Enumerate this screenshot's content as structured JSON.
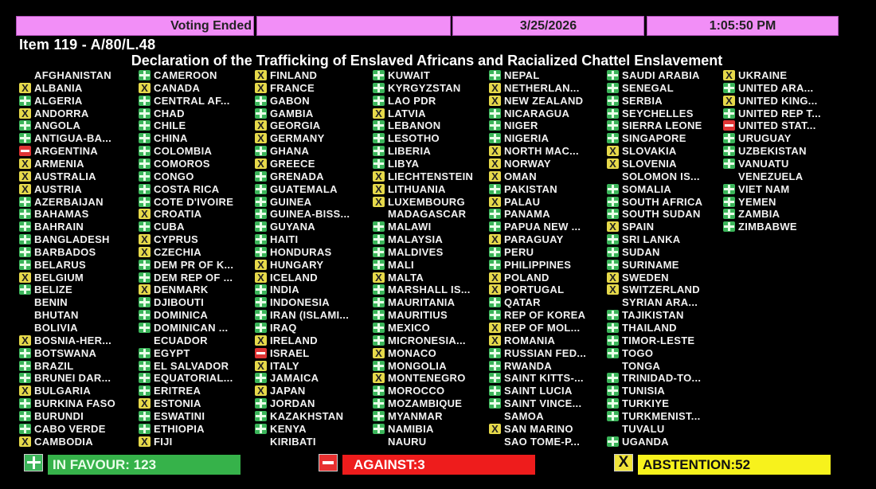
{
  "header": {
    "status": "Voting Ended",
    "blank": "",
    "date": "3/25/2026",
    "time": "1:05:50 PM"
  },
  "item": "Item 119 - A/80/L.48",
  "title": "Declaration of the Trafficking of Enslaved Africans and Racialized Chattel Enslavement",
  "colors": {
    "header": "#f28ef7",
    "yes": "#3bb55a",
    "no": "#e03535",
    "abstain": "#e6d94a"
  },
  "columns": [
    [
      [
        "AFGHANISTAN",
        ""
      ],
      [
        "ALBANIA",
        "abstain"
      ],
      [
        "ALGERIA",
        "yes"
      ],
      [
        "ANDORRA",
        "abstain"
      ],
      [
        "ANGOLA",
        "yes"
      ],
      [
        "ANTIGUA-BA...",
        "yes"
      ],
      [
        "ARGENTINA",
        "no"
      ],
      [
        "ARMENIA",
        "abstain"
      ],
      [
        "AUSTRALIA",
        "abstain"
      ],
      [
        "AUSTRIA",
        "abstain"
      ],
      [
        "AZERBAIJAN",
        "yes"
      ],
      [
        "BAHAMAS",
        "yes"
      ],
      [
        "BAHRAIN",
        "yes"
      ],
      [
        "BANGLADESH",
        "yes"
      ],
      [
        "BARBADOS",
        "yes"
      ],
      [
        "BELARUS",
        "yes"
      ],
      [
        "BELGIUM",
        "abstain"
      ],
      [
        "BELIZE",
        "yes"
      ],
      [
        "BENIN",
        ""
      ],
      [
        "BHUTAN",
        ""
      ],
      [
        "BOLIVIA",
        ""
      ],
      [
        "BOSNIA-HER...",
        "abstain"
      ],
      [
        "BOTSWANA",
        "yes"
      ],
      [
        "BRAZIL",
        "yes"
      ],
      [
        "BRUNEI DAR...",
        "yes"
      ],
      [
        "BULGARIA",
        "abstain"
      ],
      [
        "BURKINA FASO",
        "yes"
      ],
      [
        "BURUNDI",
        "yes"
      ],
      [
        "CABO VERDE",
        "yes"
      ],
      [
        "CAMBODIA",
        "abstain"
      ]
    ],
    [
      [
        "CAMEROON",
        "yes"
      ],
      [
        "CANADA",
        "abstain"
      ],
      [
        "CENTRAL AF...",
        "yes"
      ],
      [
        "CHAD",
        "yes"
      ],
      [
        "CHILE",
        "yes"
      ],
      [
        "CHINA",
        "yes"
      ],
      [
        "COLOMBIA",
        "yes"
      ],
      [
        "COMOROS",
        "yes"
      ],
      [
        "CONGO",
        "yes"
      ],
      [
        "COSTA RICA",
        "yes"
      ],
      [
        "COTE D'IVOIRE",
        "yes"
      ],
      [
        "CROATIA",
        "abstain"
      ],
      [
        "CUBA",
        "yes"
      ],
      [
        "CYPRUS",
        "abstain"
      ],
      [
        "CZECHIA",
        "abstain"
      ],
      [
        "DEM PR OF K...",
        "yes"
      ],
      [
        "DEM REP OF ...",
        "yes"
      ],
      [
        "DENMARK",
        "abstain"
      ],
      [
        "DJIBOUTI",
        "yes"
      ],
      [
        "DOMINICA",
        "yes"
      ],
      [
        "DOMINICAN ...",
        "yes"
      ],
      [
        "ECUADOR",
        ""
      ],
      [
        "EGYPT",
        "yes"
      ],
      [
        "EL SALVADOR",
        "yes"
      ],
      [
        "EQUATORIAL...",
        "yes"
      ],
      [
        "ERITREA",
        "yes"
      ],
      [
        "ESTONIA",
        "abstain"
      ],
      [
        "ESWATINI",
        "yes"
      ],
      [
        "ETHIOPIA",
        "yes"
      ],
      [
        "FIJI",
        "abstain"
      ]
    ],
    [
      [
        "FINLAND",
        "abstain"
      ],
      [
        "FRANCE",
        "abstain"
      ],
      [
        "GABON",
        "yes"
      ],
      [
        "GAMBIA",
        "yes"
      ],
      [
        "GEORGIA",
        "abstain"
      ],
      [
        "GERMANY",
        "abstain"
      ],
      [
        "GHANA",
        "yes"
      ],
      [
        "GREECE",
        "abstain"
      ],
      [
        "GRENADA",
        "yes"
      ],
      [
        "GUATEMALA",
        "yes"
      ],
      [
        "GUINEA",
        "yes"
      ],
      [
        "GUINEA-BISS...",
        "yes"
      ],
      [
        "GUYANA",
        "yes"
      ],
      [
        "HAITI",
        "yes"
      ],
      [
        "HONDURAS",
        "yes"
      ],
      [
        "HUNGARY",
        "abstain"
      ],
      [
        "ICELAND",
        "abstain"
      ],
      [
        "INDIA",
        "yes"
      ],
      [
        "INDONESIA",
        "yes"
      ],
      [
        "IRAN (ISLAMI...",
        "yes"
      ],
      [
        "IRAQ",
        "yes"
      ],
      [
        "IRELAND",
        "abstain"
      ],
      [
        "ISRAEL",
        "no"
      ],
      [
        "ITALY",
        "abstain"
      ],
      [
        "JAMAICA",
        "yes"
      ],
      [
        "JAPAN",
        "abstain"
      ],
      [
        "JORDAN",
        "yes"
      ],
      [
        "KAZAKHSTAN",
        "yes"
      ],
      [
        "KENYA",
        "yes"
      ],
      [
        "KIRIBATI",
        ""
      ]
    ],
    [
      [
        "KUWAIT",
        "yes"
      ],
      [
        "KYRGYZSTAN",
        "yes"
      ],
      [
        "LAO PDR",
        "yes"
      ],
      [
        "LATVIA",
        "abstain"
      ],
      [
        "LEBANON",
        "yes"
      ],
      [
        "LESOTHO",
        "yes"
      ],
      [
        "LIBERIA",
        "yes"
      ],
      [
        "LIBYA",
        "yes"
      ],
      [
        "LIECHTENSTEIN",
        "abstain"
      ],
      [
        "LITHUANIA",
        "abstain"
      ],
      [
        "LUXEMBOURG",
        "abstain"
      ],
      [
        "MADAGASCAR",
        ""
      ],
      [
        "MALAWI",
        "yes"
      ],
      [
        "MALAYSIA",
        "yes"
      ],
      [
        "MALDIVES",
        "yes"
      ],
      [
        "MALI",
        "yes"
      ],
      [
        "MALTA",
        "abstain"
      ],
      [
        "MARSHALL IS...",
        "yes"
      ],
      [
        "MAURITANIA",
        "yes"
      ],
      [
        "MAURITIUS",
        "yes"
      ],
      [
        "MEXICO",
        "yes"
      ],
      [
        "MICRONESIA...",
        "yes"
      ],
      [
        "MONACO",
        "abstain"
      ],
      [
        "MONGOLIA",
        "yes"
      ],
      [
        "MONTENEGRO",
        "abstain"
      ],
      [
        "MOROCCO",
        "yes"
      ],
      [
        "MOZAMBIQUE",
        "yes"
      ],
      [
        "MYANMAR",
        "yes"
      ],
      [
        "NAMIBIA",
        "yes"
      ],
      [
        "NAURU",
        ""
      ]
    ],
    [
      [
        "NEPAL",
        "yes"
      ],
      [
        "NETHERLAN...",
        "abstain"
      ],
      [
        "NEW ZEALAND",
        "abstain"
      ],
      [
        "NICARAGUA",
        "yes"
      ],
      [
        "NIGER",
        "yes"
      ],
      [
        "NIGERIA",
        "yes"
      ],
      [
        "NORTH MAC...",
        "abstain"
      ],
      [
        "NORWAY",
        "abstain"
      ],
      [
        "OMAN",
        "abstain"
      ],
      [
        "PAKISTAN",
        "yes"
      ],
      [
        "PALAU",
        "abstain"
      ],
      [
        "PANAMA",
        "yes"
      ],
      [
        "PAPUA NEW ...",
        "yes"
      ],
      [
        "PARAGUAY",
        "abstain"
      ],
      [
        "PERU",
        "yes"
      ],
      [
        "PHILIPPINES",
        "yes"
      ],
      [
        "POLAND",
        "abstain"
      ],
      [
        "PORTUGAL",
        "abstain"
      ],
      [
        "QATAR",
        "yes"
      ],
      [
        "REP OF KOREA",
        "yes"
      ],
      [
        "REP OF MOL...",
        "abstain"
      ],
      [
        "ROMANIA",
        "abstain"
      ],
      [
        "RUSSIAN FED...",
        "yes"
      ],
      [
        "RWANDA",
        "yes"
      ],
      [
        "SAINT KITTS-...",
        "yes"
      ],
      [
        "SAINT LUCIA",
        "yes"
      ],
      [
        "SAINT VINCE...",
        "yes"
      ],
      [
        "SAMOA",
        ""
      ],
      [
        "SAN MARINO",
        "abstain"
      ],
      [
        "SAO TOME-P...",
        ""
      ]
    ],
    [
      [
        "SAUDI ARABIA",
        "yes"
      ],
      [
        "SENEGAL",
        "yes"
      ],
      [
        "SERBIA",
        "yes"
      ],
      [
        "SEYCHELLES",
        "yes"
      ],
      [
        "SIERRA LEONE",
        "yes"
      ],
      [
        "SINGAPORE",
        "yes"
      ],
      [
        "SLOVAKIA",
        "abstain"
      ],
      [
        "SLOVENIA",
        "abstain"
      ],
      [
        "SOLOMON IS...",
        ""
      ],
      [
        "SOMALIA",
        "yes"
      ],
      [
        "SOUTH AFRICA",
        "yes"
      ],
      [
        "SOUTH SUDAN",
        "yes"
      ],
      [
        "SPAIN",
        "abstain"
      ],
      [
        "SRI LANKA",
        "yes"
      ],
      [
        "SUDAN",
        "yes"
      ],
      [
        "SURINAME",
        "yes"
      ],
      [
        "SWEDEN",
        "abstain"
      ],
      [
        "SWITZERLAND",
        "abstain"
      ],
      [
        "SYRIAN ARA...",
        ""
      ],
      [
        "TAJIKISTAN",
        "yes"
      ],
      [
        "THAILAND",
        "yes"
      ],
      [
        "TIMOR-LESTE",
        "yes"
      ],
      [
        "TOGO",
        "yes"
      ],
      [
        "TONGA",
        ""
      ],
      [
        "TRINIDAD-TO...",
        "yes"
      ],
      [
        "TUNISIA",
        "yes"
      ],
      [
        "TURKIYE",
        "yes"
      ],
      [
        "TURKMENIST...",
        "yes"
      ],
      [
        "TUVALU",
        ""
      ],
      [
        "UGANDA",
        "yes"
      ]
    ],
    [
      [
        "UKRAINE",
        "abstain"
      ],
      [
        "UNITED ARA...",
        "yes"
      ],
      [
        "UNITED KING...",
        "abstain"
      ],
      [
        "UNITED REP T...",
        "yes"
      ],
      [
        "UNITED STAT...",
        "no"
      ],
      [
        "URUGUAY",
        "yes"
      ],
      [
        "UZBEKISTAN",
        "yes"
      ],
      [
        "VANUATU",
        "yes"
      ],
      [
        "VENEZUELA",
        ""
      ],
      [
        "VIET NAM",
        "yes"
      ],
      [
        "YEMEN",
        "yes"
      ],
      [
        "ZAMBIA",
        "yes"
      ],
      [
        "ZIMBABWE",
        "yes"
      ]
    ]
  ],
  "totals": {
    "favour": "IN FAVOUR: 123",
    "against": "AGAINST:3",
    "abstention": "ABSTENTION:52",
    "abstain_icon_glyph": "X"
  }
}
